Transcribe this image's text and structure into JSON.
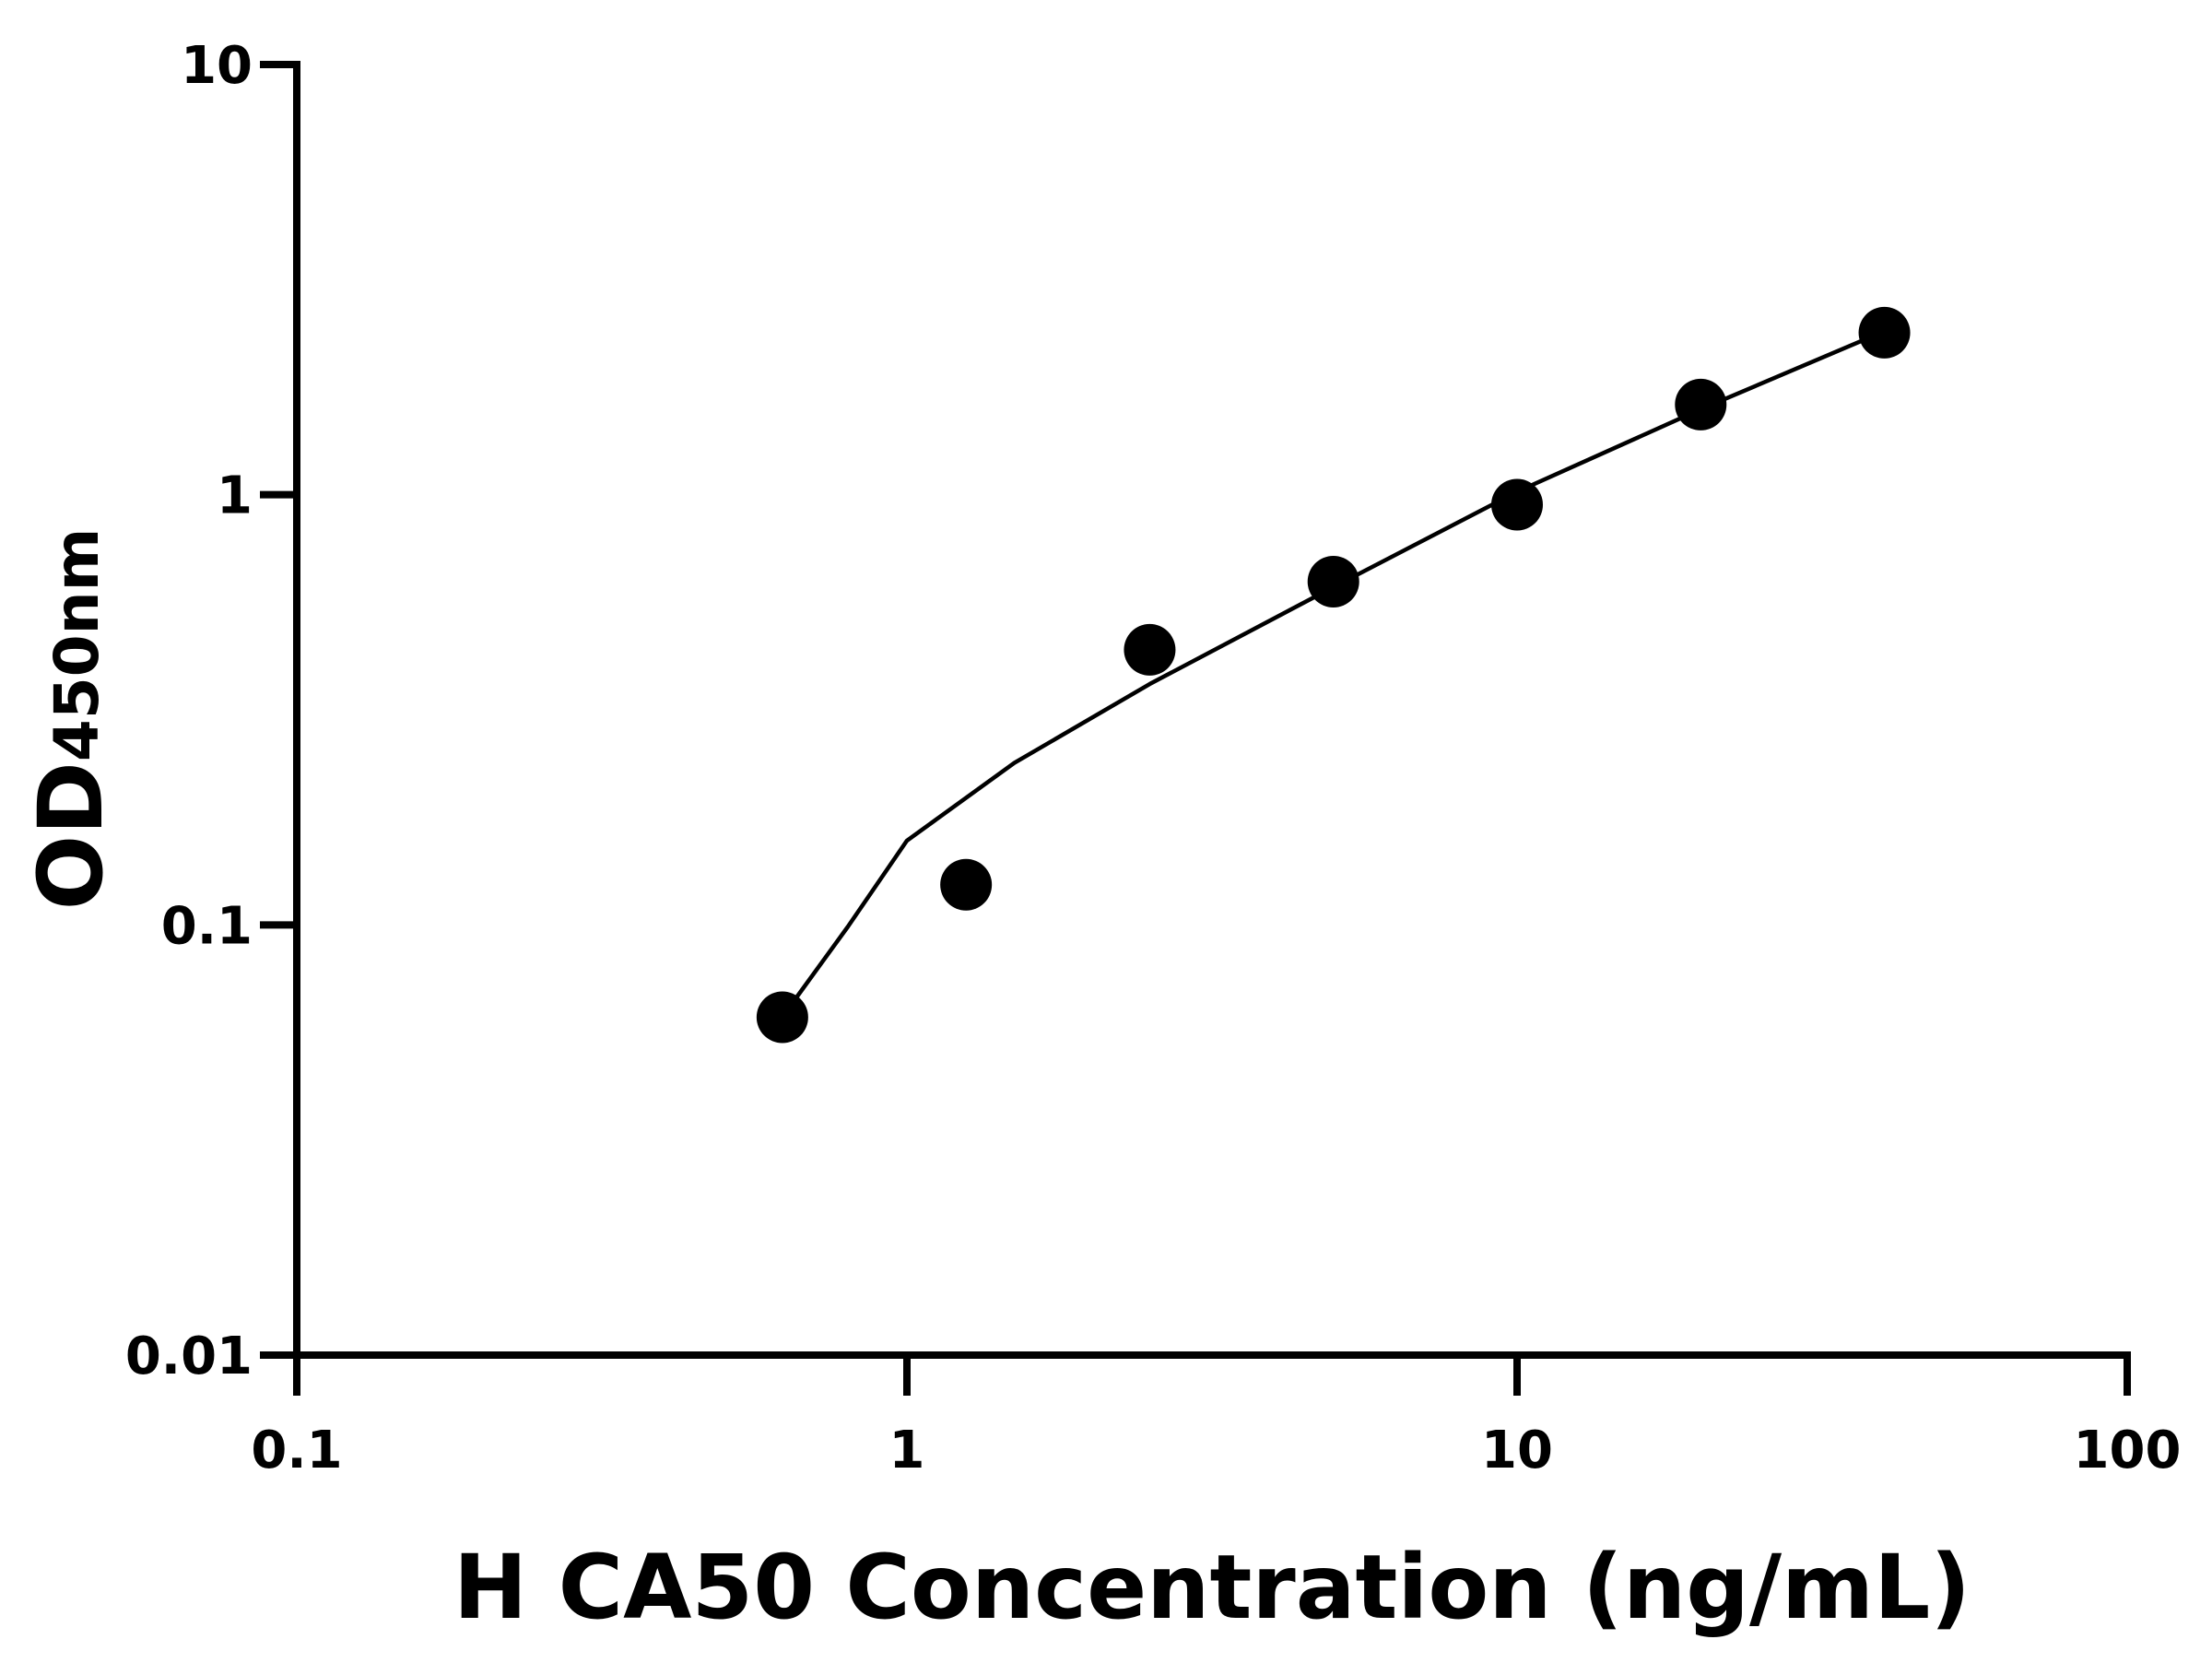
{
  "chart_data": {
    "type": "scatter",
    "xlabel": "H CA50 Concentration (ng/mL)",
    "ylabel": "OD",
    "ylabel_subscript": "450nm",
    "xscale": "log",
    "yscale": "log",
    "xlim": [
      0.1,
      100
    ],
    "ylim": [
      0.01,
      10
    ],
    "xticks": [
      0.1,
      1,
      10,
      100
    ],
    "yticks": [
      0.01,
      0.1,
      1,
      10
    ],
    "series": [
      {
        "type": "scatter",
        "color": "#000000",
        "x": [
          0.625,
          1.25,
          2.5,
          5,
          10,
          20,
          40
        ],
        "values": [
          0.061,
          0.124,
          0.436,
          0.628,
          0.948,
          1.62,
          2.38
        ]
      },
      {
        "type": "line",
        "color": "#000000",
        "x": [
          0.66,
          0.8,
          1,
          1.5,
          2.5,
          5,
          10,
          20,
          40
        ],
        "values": [
          0.068,
          0.099,
          0.157,
          0.238,
          0.363,
          0.61,
          1.016,
          1.58,
          2.4
        ]
      }
    ]
  }
}
